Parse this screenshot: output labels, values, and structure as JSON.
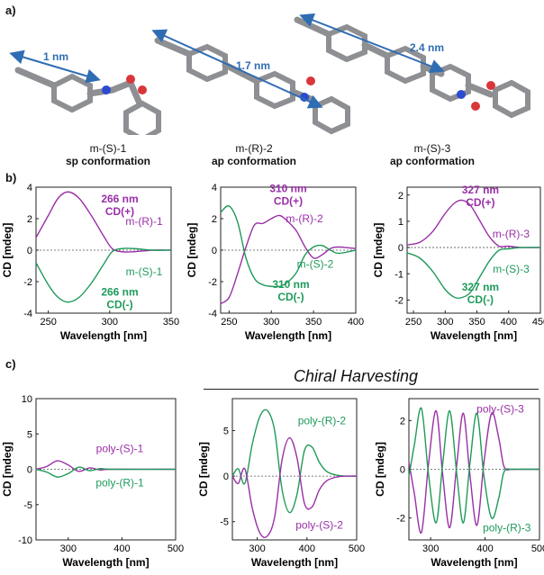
{
  "panel_labels": {
    "a": "a)",
    "b": "b)",
    "c": "c)"
  },
  "structures": [
    {
      "measure": "1 nm",
      "name": "m-(S)-1",
      "conformation": "sp conformation"
    },
    {
      "measure": "1.7 nm",
      "name": "m-(R)-2",
      "conformation": "ap conformation"
    },
    {
      "measure": "2.4 nm",
      "name": "m-(S)-3",
      "conformation": "ap conformation"
    }
  ],
  "chiral_harvesting": "Chiral Harvesting",
  "colors": {
    "purple": "#9a2fa8",
    "green": "#1f9a5a",
    "arrow": "#2f6db3"
  },
  "chart_data": [
    {
      "type": "line",
      "panel": "b1",
      "xlabel": "Wavelength [nm]",
      "ylabel": "CD [mdeg]",
      "xlim": [
        240,
        350
      ],
      "ylim": [
        -4,
        4
      ],
      "xticks": [
        250,
        300,
        350
      ],
      "yticks": [
        -4,
        -2,
        0,
        2,
        4
      ],
      "series": [
        {
          "name": "m-(R)-1",
          "color": "#9a2fa8",
          "x": [
            240,
            250,
            258,
            266,
            275,
            285,
            295,
            302,
            310,
            320,
            335,
            350
          ],
          "y": [
            0.8,
            2.2,
            3.3,
            3.7,
            3.3,
            2.2,
            0.9,
            0.1,
            -0.1,
            -0.1,
            0,
            0
          ]
        },
        {
          "name": "m-(S)-1",
          "color": "#1f9a5a",
          "x": [
            240,
            250,
            258,
            266,
            275,
            285,
            295,
            302,
            310,
            320,
            335,
            350
          ],
          "y": [
            -0.8,
            -2.2,
            -3.0,
            -3.3,
            -3.0,
            -2.1,
            -0.9,
            -0.1,
            0.1,
            0.1,
            0,
            0
          ]
        }
      ],
      "annotations": [
        {
          "text": "266 nm",
          "color": "#9a2fa8"
        },
        {
          "text": "CD(+)",
          "color": "#9a2fa8"
        },
        {
          "text": "266 nm",
          "color": "#1f9a5a"
        },
        {
          "text": "CD(-)",
          "color": "#1f9a5a"
        }
      ]
    },
    {
      "type": "line",
      "panel": "b2",
      "xlabel": "Wavelength [nm]",
      "ylabel": "CD [mdeg]",
      "xlim": [
        240,
        400
      ],
      "ylim": [
        -4,
        4
      ],
      "xticks": [
        250,
        300,
        350,
        400
      ],
      "yticks": [
        -4,
        -2,
        0,
        2,
        4
      ],
      "series": [
        {
          "name": "m-(R)-2",
          "color": "#9a2fa8",
          "x": [
            240,
            250,
            260,
            270,
            280,
            290,
            300,
            310,
            320,
            330,
            340,
            350,
            360,
            370,
            380,
            400
          ],
          "y": [
            -3.4,
            -3.0,
            -1.5,
            0.2,
            1.6,
            1.7,
            2.0,
            2.2,
            1.8,
            1.2,
            0.2,
            -0.5,
            -0.3,
            0.1,
            0.2,
            0.1
          ]
        },
        {
          "name": "m-(S)-2",
          "color": "#1f9a5a",
          "x": [
            240,
            250,
            260,
            270,
            280,
            290,
            300,
            310,
            320,
            330,
            340,
            350,
            360,
            370,
            380,
            400
          ],
          "y": [
            2.4,
            2.8,
            1.8,
            -0.5,
            -1.8,
            -2.2,
            -2.3,
            -2.3,
            -2.0,
            -1.4,
            -0.3,
            0.2,
            0.3,
            0.0,
            -0.2,
            0
          ]
        }
      ],
      "annotations": [
        {
          "text": "310 nm",
          "color": "#9a2fa8"
        },
        {
          "text": "CD(+)",
          "color": "#9a2fa8"
        },
        {
          "text": "310 nm",
          "color": "#1f9a5a"
        },
        {
          "text": "CD(-)",
          "color": "#1f9a5a"
        }
      ]
    },
    {
      "type": "line",
      "panel": "b3",
      "xlabel": "Wavelength [nm]",
      "ylabel": "CD [mdeg]",
      "xlim": [
        240,
        450
      ],
      "ylim": [
        -2.5,
        2.3
      ],
      "xticks": [
        250,
        300,
        350,
        400,
        450
      ],
      "yticks": [
        -2,
        -1,
        0,
        1,
        2
      ],
      "series": [
        {
          "name": "m-(R)-3",
          "color": "#9a2fa8",
          "x": [
            240,
            260,
            280,
            300,
            315,
            327,
            340,
            355,
            370,
            385,
            400,
            420,
            450
          ],
          "y": [
            0.1,
            0.2,
            0.6,
            1.3,
            1.7,
            1.8,
            1.6,
            1.0,
            0.4,
            0.05,
            0.05,
            0,
            0
          ]
        },
        {
          "name": "m-(S)-3",
          "color": "#1f9a5a",
          "x": [
            240,
            260,
            280,
            300,
            315,
            327,
            340,
            355,
            370,
            385,
            400,
            420,
            450
          ],
          "y": [
            -0.2,
            -0.4,
            -0.9,
            -1.6,
            -1.9,
            -1.9,
            -1.7,
            -1.1,
            -0.5,
            -0.1,
            -0.05,
            0,
            0
          ]
        }
      ],
      "annotations": [
        {
          "text": "327 nm",
          "color": "#9a2fa8"
        },
        {
          "text": "CD(+)",
          "color": "#9a2fa8"
        },
        {
          "text": "327 nm",
          "color": "#1f9a5a"
        },
        {
          "text": "CD(-)",
          "color": "#1f9a5a"
        }
      ]
    },
    {
      "type": "line",
      "panel": "c1",
      "xlabel": "Wavelength [nm]",
      "ylabel": "CD [mdeg]",
      "xlim": [
        240,
        500
      ],
      "ylim": [
        -10,
        10
      ],
      "xticks": [
        300,
        400,
        500
      ],
      "yticks": [
        -10,
        -5,
        0,
        5,
        10
      ],
      "series": [
        {
          "name": "poly-(S)-1",
          "color": "#9a2fa8",
          "x": [
            240,
            260,
            280,
            300,
            320,
            340,
            360,
            380,
            500
          ],
          "y": [
            0,
            0.4,
            1.2,
            0.6,
            -0.3,
            0.2,
            -0.1,
            0,
            0
          ]
        },
        {
          "name": "poly-(R)-1",
          "color": "#1f9a5a",
          "x": [
            240,
            260,
            280,
            300,
            320,
            340,
            360,
            380,
            500
          ],
          "y": [
            0,
            -0.4,
            -1.1,
            -0.6,
            0.3,
            -0.2,
            0.1,
            0,
            0
          ]
        }
      ]
    },
    {
      "type": "line",
      "panel": "c2",
      "xlabel": "Wavelength [nm]",
      "ylabel": "CD [mdeg]",
      "xlim": [
        250,
        500
      ],
      "ylim": [
        -7,
        8.5
      ],
      "xticks": [
        300,
        400,
        500
      ],
      "yticks": [
        -5,
        0,
        5
      ],
      "series": [
        {
          "name": "poly-(R)-2",
          "color": "#1f9a5a",
          "x": [
            250,
            262,
            275,
            290,
            305,
            320,
            335,
            350,
            365,
            380,
            395,
            410,
            425,
            440,
            460,
            480,
            500
          ],
          "y": [
            0,
            0.8,
            -0.8,
            3.5,
            6.5,
            7.2,
            5.0,
            -1.5,
            -4.0,
            -2.0,
            2.8,
            3.2,
            1.5,
            0.5,
            0.1,
            0,
            0
          ]
        },
        {
          "name": "poly-(S)-2",
          "color": "#9a2fa8",
          "x": [
            250,
            262,
            275,
            290,
            305,
            320,
            335,
            350,
            365,
            380,
            395,
            410,
            425,
            440,
            460,
            480,
            500
          ],
          "y": [
            0,
            -0.8,
            0.8,
            -3.5,
            -6.2,
            -6.6,
            -4.5,
            1.8,
            4.2,
            2.0,
            -3.0,
            -3.4,
            -1.5,
            -0.5,
            -0.1,
            0,
            0
          ]
        }
      ]
    },
    {
      "type": "line",
      "panel": "c3",
      "xlabel": "Wavelength [nm]",
      "ylabel": "CD [mdeg]",
      "xlim": [
        260,
        500
      ],
      "ylim": [
        -2.9,
        2.9
      ],
      "xticks": [
        300,
        400,
        500
      ],
      "yticks": [
        -2,
        0,
        2
      ],
      "series": [
        {
          "name": "poly-(S)-3",
          "color": "#9a2fa8",
          "x": [
            260,
            270,
            283,
            296,
            310,
            322,
            335,
            348,
            360,
            372,
            385,
            398,
            412,
            425,
            435,
            450,
            470,
            500
          ],
          "y": [
            0.3,
            -1.0,
            -2.6,
            0.2,
            2.4,
            -0.2,
            -2.4,
            0.2,
            2.3,
            -0.2,
            -2.3,
            0.3,
            2.3,
            1.3,
            0.1,
            0,
            0,
            0
          ]
        },
        {
          "name": "poly-(R)-3",
          "color": "#1f9a5a",
          "x": [
            260,
            270,
            283,
            296,
            310,
            322,
            335,
            348,
            360,
            372,
            385,
            398,
            412,
            425,
            435,
            450,
            470,
            500
          ],
          "y": [
            -0.3,
            1.0,
            2.5,
            -0.2,
            -2.2,
            0.2,
            2.4,
            -0.2,
            -2.2,
            0.2,
            2.3,
            -0.3,
            -2.0,
            -1.2,
            -0.1,
            0,
            0,
            0
          ]
        }
      ]
    }
  ]
}
